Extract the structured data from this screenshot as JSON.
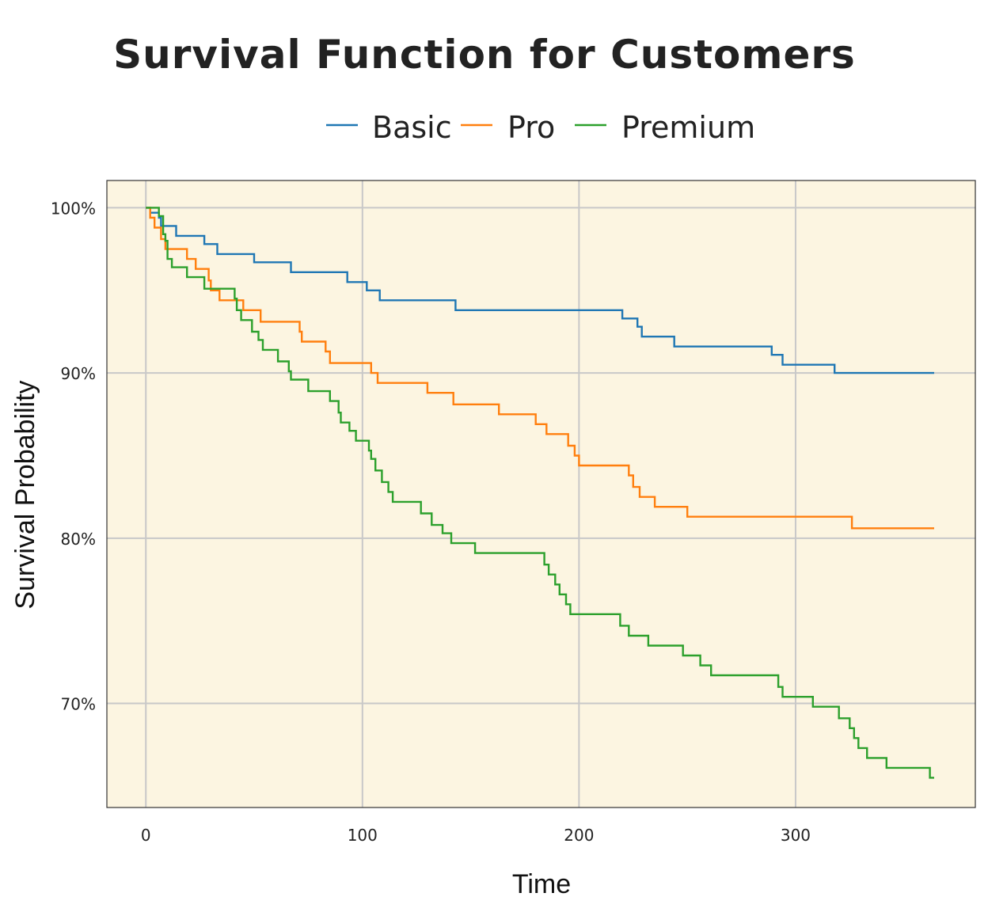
{
  "chart_data": {
    "type": "line",
    "title": "Survival Function for Customers",
    "xlabel": "Time",
    "ylabel": "Survival Probability",
    "xlim": [
      -18,
      383
    ],
    "ylim": [
      0.637,
      1.0165
    ],
    "x_ticks": [
      0,
      100,
      200,
      300
    ],
    "y_ticks": [
      0.7,
      0.8,
      0.9,
      1.0
    ],
    "x_tick_labels": [
      "0",
      "100",
      "200",
      "300"
    ],
    "y_tick_labels": [
      "70%",
      "80%",
      "90%",
      "100%"
    ],
    "grid": true,
    "legend_placement": "top-center",
    "background": "#fcf5e1",
    "series": [
      {
        "name": "Basic",
        "color": "#1f77b4",
        "points": [
          [
            0,
            1.0
          ],
          [
            2,
            0.997
          ],
          [
            6,
            0.994
          ],
          [
            7,
            0.989
          ],
          [
            14,
            0.983
          ],
          [
            27,
            0.978
          ],
          [
            33,
            0.972
          ],
          [
            50,
            0.967
          ],
          [
            67,
            0.961
          ],
          [
            93,
            0.955
          ],
          [
            102,
            0.95
          ],
          [
            108,
            0.944
          ],
          [
            143,
            0.938
          ],
          [
            220,
            0.933
          ],
          [
            227,
            0.928
          ],
          [
            229,
            0.922
          ],
          [
            244,
            0.916
          ],
          [
            289,
            0.911
          ],
          [
            294,
            0.905
          ],
          [
            318,
            0.9
          ],
          [
            364,
            0.9
          ]
        ]
      },
      {
        "name": "Pro",
        "color": "#ff7f0e",
        "points": [
          [
            0,
            1.0
          ],
          [
            2,
            0.994
          ],
          [
            4,
            0.988
          ],
          [
            7,
            0.981
          ],
          [
            9,
            0.975
          ],
          [
            19,
            0.969
          ],
          [
            23,
            0.963
          ],
          [
            29,
            0.956
          ],
          [
            30,
            0.95
          ],
          [
            34,
            0.944
          ],
          [
            45,
            0.938
          ],
          [
            53,
            0.931
          ],
          [
            71,
            0.925
          ],
          [
            72,
            0.919
          ],
          [
            83,
            0.913
          ],
          [
            85,
            0.906
          ],
          [
            104,
            0.9
          ],
          [
            107,
            0.894
          ],
          [
            130,
            0.888
          ],
          [
            142,
            0.881
          ],
          [
            163,
            0.875
          ],
          [
            180,
            0.869
          ],
          [
            185,
            0.863
          ],
          [
            195,
            0.856
          ],
          [
            198,
            0.85
          ],
          [
            200,
            0.844
          ],
          [
            223,
            0.838
          ],
          [
            225,
            0.831
          ],
          [
            228,
            0.825
          ],
          [
            235,
            0.819
          ],
          [
            250,
            0.813
          ],
          [
            326,
            0.806
          ],
          [
            364,
            0.806
          ]
        ]
      },
      {
        "name": "Premium",
        "color": "#2ca02c",
        "points": [
          [
            0,
            1.0
          ],
          [
            6,
            0.995
          ],
          [
            8,
            0.984
          ],
          [
            9,
            0.98
          ],
          [
            10,
            0.969
          ],
          [
            12,
            0.964
          ],
          [
            19,
            0.958
          ],
          [
            27,
            0.951
          ],
          [
            41,
            0.945
          ],
          [
            42,
            0.938
          ],
          [
            44,
            0.932
          ],
          [
            49,
            0.925
          ],
          [
            52,
            0.92
          ],
          [
            54,
            0.914
          ],
          [
            61,
            0.907
          ],
          [
            66,
            0.901
          ],
          [
            67,
            0.896
          ],
          [
            75,
            0.889
          ],
          [
            85,
            0.883
          ],
          [
            89,
            0.876
          ],
          [
            90,
            0.87
          ],
          [
            94,
            0.865
          ],
          [
            97,
            0.859
          ],
          [
            103,
            0.853
          ],
          [
            104,
            0.848
          ],
          [
            106,
            0.841
          ],
          [
            109,
            0.834
          ],
          [
            112,
            0.828
          ],
          [
            114,
            0.822
          ],
          [
            127,
            0.815
          ],
          [
            132,
            0.808
          ],
          [
            137,
            0.803
          ],
          [
            141,
            0.797
          ],
          [
            152,
            0.791
          ],
          [
            184,
            0.784
          ],
          [
            186,
            0.778
          ],
          [
            189,
            0.772
          ],
          [
            191,
            0.766
          ],
          [
            194,
            0.76
          ],
          [
            196,
            0.754
          ],
          [
            219,
            0.747
          ],
          [
            223,
            0.741
          ],
          [
            232,
            0.735
          ],
          [
            248,
            0.729
          ],
          [
            256,
            0.723
          ],
          [
            261,
            0.717
          ],
          [
            292,
            0.71
          ],
          [
            294,
            0.704
          ],
          [
            308,
            0.698
          ],
          [
            320,
            0.691
          ],
          [
            325,
            0.685
          ],
          [
            327,
            0.679
          ],
          [
            329,
            0.673
          ],
          [
            333,
            0.667
          ],
          [
            342,
            0.661
          ],
          [
            362,
            0.655
          ],
          [
            364,
            0.655
          ]
        ]
      }
    ]
  }
}
